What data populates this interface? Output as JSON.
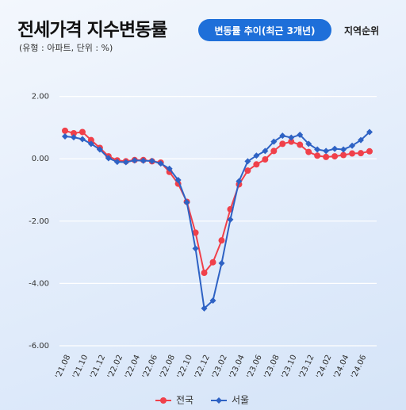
{
  "header": {
    "title": "전세가격 지수변동률",
    "subtitle": "(유형 : 아파트, 단위 : %)",
    "tab_active": "변동률 추이(최근 3개년)",
    "tab_other": "지역순위"
  },
  "chart_data": {
    "type": "line",
    "categories": [
      "'21.08",
      null,
      "'21.10",
      null,
      "'21.12",
      null,
      "'22.02",
      null,
      "'22.04",
      null,
      "'22.06",
      null,
      "'22.08",
      null,
      "'22.10",
      null,
      "'22.12",
      null,
      "'23.02",
      null,
      "'23.04",
      null,
      "'23.06",
      null,
      "'23.08",
      null,
      "'23.10",
      null,
      "'23.12",
      null,
      "'24.02",
      null,
      "'24.04",
      null,
      "'24.06",
      null
    ],
    "series": [
      {
        "name": "전국",
        "color": "#f0404a",
        "marker": "circle",
        "values": [
          0.9,
          0.82,
          0.86,
          0.6,
          0.35,
          0.08,
          -0.05,
          -0.08,
          -0.04,
          -0.04,
          -0.08,
          -0.12,
          -0.42,
          -0.8,
          -1.38,
          -2.37,
          -3.66,
          -3.32,
          -2.62,
          -1.62,
          -0.82,
          -0.38,
          -0.18,
          -0.02,
          0.25,
          0.48,
          0.55,
          0.45,
          0.22,
          0.1,
          0.06,
          0.08,
          0.12,
          0.17,
          0.18,
          0.24
        ]
      },
      {
        "name": "서울",
        "color": "#2e62c4",
        "marker": "diamond",
        "values": [
          0.72,
          0.69,
          0.63,
          0.48,
          0.3,
          0.02,
          -0.1,
          -0.11,
          -0.05,
          -0.06,
          -0.07,
          -0.15,
          -0.32,
          -0.68,
          -1.4,
          -2.88,
          -4.8,
          -4.55,
          -3.35,
          -1.95,
          -0.72,
          -0.08,
          0.1,
          0.25,
          0.55,
          0.74,
          0.68,
          0.77,
          0.48,
          0.3,
          0.25,
          0.32,
          0.3,
          0.42,
          0.6,
          0.86
        ]
      }
    ],
    "ylim": [
      -6,
      2.5
    ],
    "yticks": [
      {
        "value": -6,
        "label": "-6.00"
      },
      {
        "value": -4,
        "label": "-4.00"
      },
      {
        "value": -2,
        "label": "-2.00"
      },
      {
        "value": 0,
        "label": "0.00"
      },
      {
        "value": 2,
        "label": "2.00"
      }
    ],
    "grid": true,
    "legend": "bottom"
  }
}
